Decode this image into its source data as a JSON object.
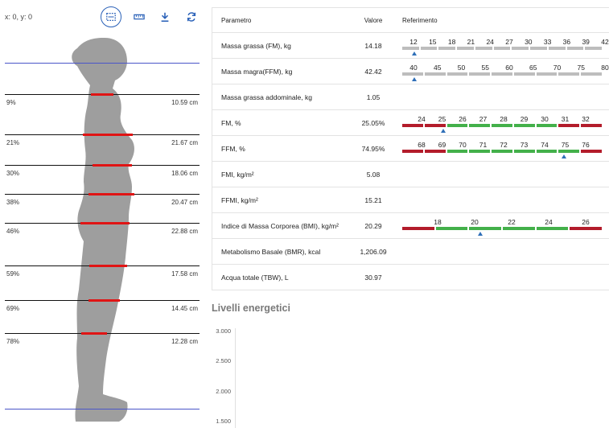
{
  "left_panel": {
    "coords": "x: 0, y: 0",
    "tools": [
      {
        "name": "selection-tool",
        "active": true
      },
      {
        "name": "ruler-tool",
        "active": false
      },
      {
        "name": "download-tool",
        "active": false
      },
      {
        "name": "reset-tool",
        "active": false
      }
    ],
    "levels": [
      {
        "pct": "9%",
        "cm": "10.59 cm"
      },
      {
        "pct": "21%",
        "cm": "21.67 cm"
      },
      {
        "pct": "30%",
        "cm": "18.06 cm"
      },
      {
        "pct": "38%",
        "cm": "20.47 cm"
      },
      {
        "pct": "46%",
        "cm": "22.88 cm"
      },
      {
        "pct": "59%",
        "cm": "17.58 cm"
      },
      {
        "pct": "69%",
        "cm": "14.45 cm"
      },
      {
        "pct": "78%",
        "cm": "12.28 cm"
      }
    ],
    "colors": {
      "guide": "#4a55c8",
      "measure": "#e01414",
      "body": "#9e9e9e"
    }
  },
  "table": {
    "headers": {
      "param": "Parametro",
      "value": "Valore",
      "ref": "Referimento"
    },
    "rows": [
      {
        "param": "Massa grassa (FM), kg",
        "value": "14.18",
        "scale": {
          "ticks": [
            "12",
            "15",
            "18",
            "21",
            "24",
            "27",
            "30",
            "33",
            "36",
            "39",
            "42"
          ],
          "style": "grey",
          "marker_index": 0.05
        }
      },
      {
        "param": "Massa magra(FFM), kg",
        "value": "42.42",
        "scale": {
          "ticks": [
            "40",
            "45",
            "50",
            "55",
            "60",
            "65",
            "70",
            "75",
            "80"
          ],
          "style": "grey",
          "marker_index": 0.05
        }
      },
      {
        "param": "Massa grassa addominale, kg",
        "value": "1.05",
        "scale": null
      },
      {
        "param": "FM, %",
        "value": "25.05%",
        "scale": {
          "ticks": [
            "24",
            "25",
            "26",
            "27",
            "28",
            "29",
            "30",
            "31",
            "32"
          ],
          "style": "fm",
          "marker_index": 1.05
        }
      },
      {
        "param": "FFM, %",
        "value": "74.95%",
        "scale": {
          "ticks": [
            "68",
            "69",
            "70",
            "71",
            "72",
            "73",
            "74",
            "75",
            "76"
          ],
          "style": "ffm",
          "marker_index": 6.95
        }
      },
      {
        "param": "FMI, kg/m²",
        "value": "5.08",
        "scale": null
      },
      {
        "param": "FFMI, kg/m²",
        "value": "15.21",
        "scale": null
      },
      {
        "param": "Indice di Massa Corporea (BMI), kg/m²",
        "value": "20.29",
        "scale": {
          "ticks": [
            "18",
            "20",
            "22",
            "24",
            "26"
          ],
          "style": "bmi",
          "marker_index": 1.15
        }
      },
      {
        "param": "Metabolismo Basale (BMR), kcal",
        "value": "1,206.09",
        "scale": null
      },
      {
        "param": "Acqua totale (TBW), L",
        "value": "30.97",
        "scale": null
      }
    ],
    "colors": {
      "grey": "#bdbdbd",
      "green": "#43b04a",
      "red": "#b31c2b",
      "marker": "#2f6fb8"
    }
  },
  "energy": {
    "title": "Livelli energetici",
    "y_ticks": [
      "3.000",
      "2.500",
      "2.000",
      "1.500"
    ]
  }
}
